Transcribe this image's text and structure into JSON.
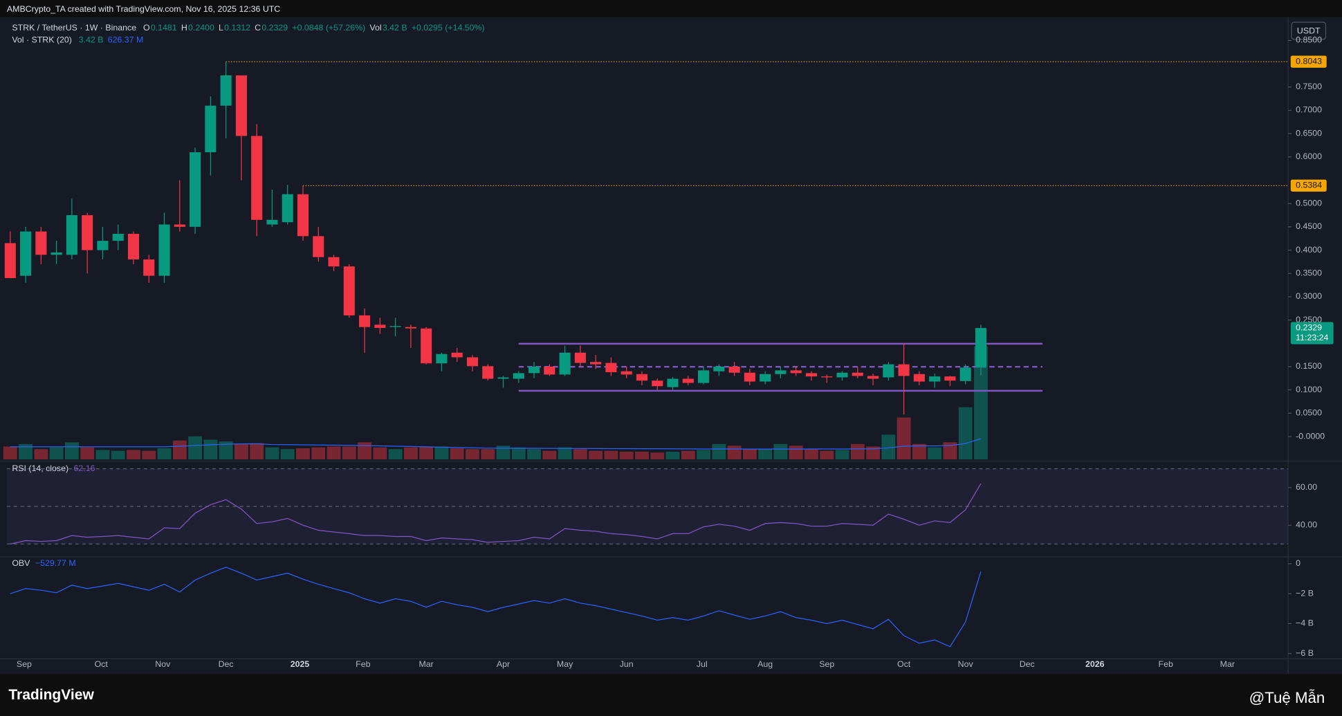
{
  "header": "AMBCrypto_TA created with TradingView.com, Nov 16, 2025 12:36 UTC",
  "footer": {
    "brand": "TradingView",
    "author": "@Tuệ Mẫn"
  },
  "chart_data": [
    {
      "type": "candlestick",
      "title": "STRK / TetherUS · 1W · Binance",
      "currency": "USDT",
      "up_color": "#089981",
      "down_color": "#f23645",
      "open": [
        0.415,
        0.345,
        0.44,
        0.39,
        0.39,
        0.475,
        0.4,
        0.42,
        0.435,
        0.38,
        0.345,
        0.455,
        0.45,
        0.61,
        0.71,
        0.775,
        0.645,
        0.455,
        0.46,
        0.52,
        0.43,
        0.385,
        0.365,
        0.26,
        0.24,
        0.235,
        0.235,
        0.232,
        0.157,
        0.18,
        0.17,
        0.151,
        0.124,
        0.124,
        0.136,
        0.15,
        0.133,
        0.18,
        0.16,
        0.158,
        0.14,
        0.134,
        0.12,
        0.106,
        0.124,
        0.115,
        0.14,
        0.15,
        0.137,
        0.118,
        0.134,
        0.142,
        0.136,
        0.129,
        0.127,
        0.137,
        0.13,
        0.127,
        0.155,
        0.134,
        0.118,
        0.129,
        0.119,
        0.1481
      ],
      "high": [
        0.44,
        0.45,
        0.45,
        0.42,
        0.51,
        0.48,
        0.45,
        0.455,
        0.44,
        0.39,
        0.48,
        0.55,
        0.62,
        0.73,
        0.8043,
        0.775,
        0.67,
        0.53,
        0.54,
        0.5384,
        0.45,
        0.39,
        0.37,
        0.275,
        0.255,
        0.255,
        0.24,
        0.235,
        0.18,
        0.19,
        0.175,
        0.155,
        0.13,
        0.14,
        0.16,
        0.155,
        0.195,
        0.195,
        0.175,
        0.17,
        0.15,
        0.14,
        0.125,
        0.128,
        0.13,
        0.15,
        0.155,
        0.16,
        0.145,
        0.14,
        0.15,
        0.15,
        0.14,
        0.133,
        0.14,
        0.15,
        0.135,
        0.16,
        0.2,
        0.14,
        0.135,
        0.13,
        0.155,
        0.24
      ],
      "low": [
        0.34,
        0.33,
        0.37,
        0.37,
        0.38,
        0.35,
        0.38,
        0.4,
        0.37,
        0.33,
        0.33,
        0.44,
        0.435,
        0.56,
        0.64,
        0.55,
        0.43,
        0.45,
        0.455,
        0.42,
        0.375,
        0.355,
        0.255,
        0.18,
        0.22,
        0.215,
        0.19,
        0.155,
        0.14,
        0.16,
        0.14,
        0.12,
        0.105,
        0.115,
        0.125,
        0.13,
        0.13,
        0.15,
        0.145,
        0.13,
        0.125,
        0.11,
        0.1,
        0.1,
        0.11,
        0.112,
        0.13,
        0.13,
        0.11,
        0.112,
        0.125,
        0.13,
        0.12,
        0.115,
        0.12,
        0.125,
        0.11,
        0.12,
        0.047,
        0.11,
        0.105,
        0.108,
        0.112,
        0.1312
      ],
      "close": [
        0.34,
        0.44,
        0.39,
        0.395,
        0.475,
        0.4,
        0.42,
        0.435,
        0.38,
        0.345,
        0.455,
        0.45,
        0.61,
        0.71,
        0.775,
        0.645,
        0.465,
        0.465,
        0.52,
        0.43,
        0.385,
        0.365,
        0.26,
        0.235,
        0.233,
        0.237,
        0.232,
        0.157,
        0.177,
        0.17,
        0.151,
        0.124,
        0.127,
        0.136,
        0.15,
        0.133,
        0.18,
        0.158,
        0.155,
        0.138,
        0.133,
        0.12,
        0.108,
        0.124,
        0.115,
        0.142,
        0.15,
        0.137,
        0.118,
        0.134,
        0.142,
        0.136,
        0.129,
        0.127,
        0.137,
        0.13,
        0.124,
        0.155,
        0.13,
        0.118,
        0.129,
        0.12,
        0.148,
        0.2329
      ],
      "legend": {
        "ohlc_letters": [
          "O",
          "H",
          "L",
          "C"
        ],
        "high_label": "0.2400",
        "change": "+0.0848 (+57.26%)",
        "vol_letter": "Vol",
        "vol_change": "+0.0295 (+14.50%)"
      },
      "countdown": "11:23:24",
      "xlim": [
        -0.22,
        82.94
      ],
      "xticks": [
        {
          "value": 0.9,
          "label": "Sep"
        },
        {
          "value": 5.9,
          "label": "Oct"
        },
        {
          "value": 9.9,
          "label": "Nov"
        },
        {
          "value": 14,
          "label": "Dec"
        },
        {
          "value": 18.8,
          "label": "2025"
        },
        {
          "value": 22.9,
          "label": "Feb"
        },
        {
          "value": 27,
          "label": "Mar"
        },
        {
          "value": 32,
          "label": "Apr"
        },
        {
          "value": 36,
          "label": "May"
        },
        {
          "value": 40,
          "label": "Jun"
        },
        {
          "value": 44.9,
          "label": "Jul"
        },
        {
          "value": 49,
          "label": "Aug"
        },
        {
          "value": 53,
          "label": "Sep"
        },
        {
          "value": 58,
          "label": "Oct"
        },
        {
          "value": 62,
          "label": "Nov"
        },
        {
          "value": 66,
          "label": "Dec"
        },
        {
          "value": 70.4,
          "label": "2026"
        },
        {
          "value": 75,
          "label": "Feb"
        },
        {
          "value": 79,
          "label": "Mar"
        }
      ],
      "ylim": [
        -0.049,
        0.9
      ],
      "yticks": [
        {
          "value": 0.85,
          "label": "0.8500"
        },
        {
          "value": 0.75,
          "label": "0.7500"
        },
        {
          "value": 0.7,
          "label": "0.7000"
        },
        {
          "value": 0.65,
          "label": "0.6500"
        },
        {
          "value": 0.6,
          "label": "0.6000"
        },
        {
          "value": 0.5,
          "label": "0.5000"
        },
        {
          "value": 0.45,
          "label": "0.4500"
        },
        {
          "value": 0.4,
          "label": "0.4000"
        },
        {
          "value": 0.35,
          "label": "0.3500"
        },
        {
          "value": 0.3,
          "label": "0.3000"
        },
        {
          "value": 0.25,
          "label": "0.2500"
        },
        {
          "value": 0.15,
          "label": "0.1500"
        },
        {
          "value": 0.1,
          "label": "0.1000"
        },
        {
          "value": 0.05,
          "label": "0.0500"
        },
        {
          "value": 0,
          "label": "-0.0000"
        }
      ],
      "levels": [
        {
          "value": 0.8043,
          "from": 14,
          "color": "#f7a600"
        },
        {
          "value": 0.5384,
          "from": 19,
          "color": "#f7a600"
        }
      ],
      "range": {
        "top": 0.1992,
        "middle": 0.1497,
        "bottom": 0.0982,
        "from": 33,
        "to": 67,
        "color": "#7e57c2"
      },
      "volume": {
        "name": "Vol · STRK (20)",
        "values": [
          389000000,
          466000000,
          311000000,
          363000000,
          518000000,
          363000000,
          285000000,
          259000000,
          285000000,
          259000000,
          337000000,
          570000000,
          699000000,
          596000000,
          544000000,
          466000000,
          492000000,
          363000000,
          311000000,
          337000000,
          363000000,
          389000000,
          389000000,
          518000000,
          363000000,
          311000000,
          363000000,
          389000000,
          389000000,
          337000000,
          311000000,
          311000000,
          414000000,
          363000000,
          311000000,
          259000000,
          363000000,
          311000000,
          259000000,
          259000000,
          233000000,
          233000000,
          207000000,
          233000000,
          259000000,
          285000000,
          466000000,
          414000000,
          311000000,
          311000000,
          466000000,
          414000000,
          311000000,
          259000000,
          285000000,
          466000000,
          389000000,
          751000000,
          1269000000,
          466000000,
          363000000,
          518000000,
          1580000000,
          3420000000
        ],
        "value_label": "3.42 B",
        "ma": [
          380000000,
          380000000,
          380000000,
          380000000,
          380000000,
          380000000,
          380000000,
          380000000,
          380000000,
          380000000,
          380000000,
          400000000,
          420000000,
          440000000,
          460000000,
          470000000,
          470000000,
          450000000,
          445000000,
          440000000,
          435000000,
          430000000,
          425000000,
          420000000,
          410000000,
          400000000,
          390000000,
          380000000,
          370000000,
          360000000,
          350000000,
          340000000,
          338000000,
          336000000,
          335000000,
          333000000,
          332000000,
          330000000,
          328000000,
          326000000,
          325000000,
          324000000,
          322000000,
          320000000,
          318000000,
          316000000,
          315000000,
          314000000,
          313000000,
          312000000,
          312000000,
          313000000,
          314000000,
          315000000,
          316000000,
          318000000,
          320000000,
          350000000,
          400000000,
          410000000,
          410000000,
          420000000,
          480000000,
          626370000
        ],
        "ma_label": "626.37 M",
        "ma_color": "#2962ff",
        "ylim": [
          0,
          13400000000
        ]
      }
    },
    {
      "type": "line",
      "title": "RSI (14, close)",
      "color": "#7e57c2",
      "values": [
        30,
        31.8,
        31.4,
        31.8,
        34.5,
        33.6,
        34,
        34.5,
        33.6,
        32.7,
        38.6,
        38.2,
        46.4,
        50.9,
        53.6,
        48.6,
        40.9,
        41.8,
        43.6,
        40,
        37.3,
        36.4,
        35.5,
        34.5,
        34.5,
        34,
        34,
        31.8,
        33.2,
        32.7,
        32.3,
        30.9,
        31.4,
        31.8,
        33.6,
        32.7,
        38.2,
        37.3,
        36.8,
        35.5,
        35,
        34,
        32.7,
        35.5,
        35.5,
        39.1,
        40.5,
        39.5,
        37.3,
        40.9,
        41.4,
        40.9,
        39.5,
        39.5,
        40.9,
        40.5,
        40,
        45.9,
        43.2,
        40,
        42.3,
        41.4,
        48.2,
        62.16
      ],
      "ylim": [
        23.6,
        73.2
      ],
      "yticks": [
        {
          "value": 60,
          "label": "60.00"
        },
        {
          "value": 40,
          "label": "40.00"
        }
      ],
      "levels": [
        70,
        50,
        30
      ]
    },
    {
      "type": "line",
      "title": "OBV",
      "color": "#2962ff",
      "values": [
        -2000000000,
        -1660000000,
        -1770000000,
        -1940000000,
        -1430000000,
        -1660000000,
        -1490000000,
        -1310000000,
        -1540000000,
        -1770000000,
        -1370000000,
        -1890000000,
        -1090000000,
        -630000000,
        -230000000,
        -630000000,
        -1090000000,
        -860000000,
        -630000000,
        -1030000000,
        -1370000000,
        -1660000000,
        -1940000000,
        -2340000000,
        -2630000000,
        -2340000000,
        -2510000000,
        -2910000000,
        -2510000000,
        -2740000000,
        -2910000000,
        -3200000000,
        -2910000000,
        -2690000000,
        -2460000000,
        -2630000000,
        -2340000000,
        -2630000000,
        -2800000000,
        -3030000000,
        -3260000000,
        -3490000000,
        -3770000000,
        -3600000000,
        -3770000000,
        -3490000000,
        -3140000000,
        -3430000000,
        -3710000000,
        -3490000000,
        -3200000000,
        -3600000000,
        -3770000000,
        -4000000000,
        -3770000000,
        -4060000000,
        -4340000000,
        -3710000000,
        -4800000000,
        -5310000000,
        -5090000000,
        -5540000000,
        -3890000000,
        -529770000
      ],
      "value_label": "−529.77 M",
      "ylim": [
        -6343000000,
        400000000
      ],
      "yticks": [
        0,
        {
          "value": -2000000000,
          "label": "−2 B"
        },
        {
          "value": -4000000000,
          "label": "−4 B"
        },
        {
          "value": -6000000000,
          "label": "−6 B"
        }
      ]
    }
  ]
}
